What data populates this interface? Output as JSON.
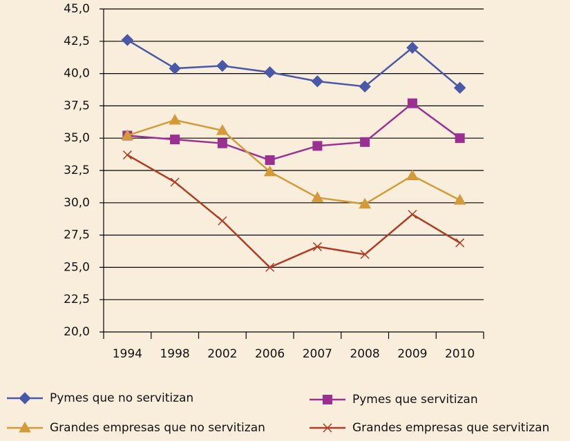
{
  "chart_data": {
    "type": "line",
    "categories": [
      "1994",
      "1998",
      "2002",
      "2006",
      "2007",
      "2008",
      "2009",
      "2010"
    ],
    "series": [
      {
        "name": "Pymes que no servitizan",
        "color": "#4a59a7",
        "marker": "diamond",
        "values": [
          42.6,
          40.4,
          40.6,
          40.1,
          39.4,
          39.0,
          42.0,
          38.9
        ]
      },
      {
        "name": "Pymes que servitizan",
        "color": "#9b2f92",
        "marker": "square",
        "values": [
          35.2,
          34.9,
          34.6,
          33.3,
          34.4,
          34.7,
          37.7,
          35.0
        ]
      },
      {
        "name": "Grandes empresas que no servitizan",
        "color": "#d49a3a",
        "marker": "triangle",
        "values": [
          35.2,
          36.4,
          35.6,
          32.4,
          30.4,
          29.9,
          32.1,
          30.2
        ]
      },
      {
        "name": "Grandes empresas que servitizan",
        "color": "#b13b22",
        "marker": "cross",
        "values": [
          33.7,
          31.6,
          28.6,
          25.0,
          26.6,
          26.0,
          29.1,
          26.9
        ]
      }
    ],
    "ylim": [
      20,
      45
    ],
    "yticks": [
      {
        "value": 20,
        "label": "20,0"
      },
      {
        "value": 22.5,
        "label": "22,5"
      },
      {
        "value": 25,
        "label": "25,0"
      },
      {
        "value": 27.5,
        "label": "27,5"
      },
      {
        "value": 30,
        "label": "30,0"
      },
      {
        "value": 32.5,
        "label": "32,5"
      },
      {
        "value": 35,
        "label": "35,0"
      },
      {
        "value": 37.5,
        "label": "37,5"
      },
      {
        "value": 40,
        "label": "40,0"
      },
      {
        "value": 42.5,
        "label": "42,5"
      },
      {
        "value": 45,
        "label": "45,0"
      }
    ],
    "grid": true
  }
}
